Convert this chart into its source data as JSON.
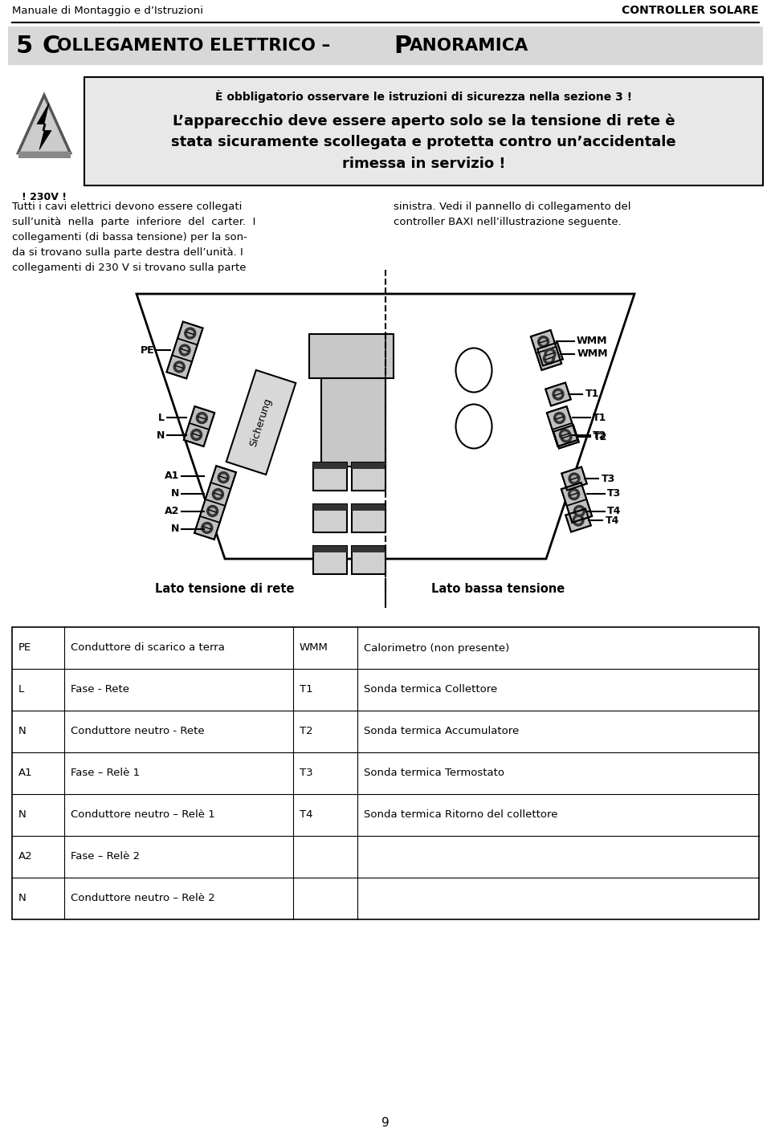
{
  "header_left": "Manuale di Montaggio e d’Istruzioni",
  "header_right": "CONTROLLER SOLARE",
  "warning_line1": "È obbligatorio osservare le istruzioni di sicurezza nella sezione 3 !",
  "warning_line2": "L’apparecchio deve essere aperto solo se la tensione di rete è",
  "warning_line3": "stata sicuramente scollegata e protetta contro un’accidentale",
  "warning_line4": "rimessa in servizio !",
  "voltage_label": "! 230V !",
  "body_text_left": [
    "Tutti i cavi elettrici devono essere collegati",
    "sull’unità  nella  parte  inferiore  del  carter.  I",
    "collegamenti (di bassa tensione) per la son-",
    "da si trovano sulla parte destra dell’unità. I",
    "collegamenti di 230 V si trovano sulla parte"
  ],
  "body_text_right": [
    "sinistra. Vedi il pannello di collegamento del",
    "controller BAXI nell’illustrazione seguente."
  ],
  "label_left": "Lato tensione di rete",
  "label_right": "Lato bassa tensione",
  "connector_labels_left": [
    "PE",
    "L",
    "N",
    "A1",
    "N",
    "A2",
    "N"
  ],
  "connector_labels_right": [
    "WMM",
    "T1",
    "T2",
    "T3",
    "T4"
  ],
  "table_rows": [
    [
      "PE",
      "Conduttore di scarico a terra",
      "WMM",
      "Calorimetro (non presente)"
    ],
    [
      "L",
      "Fase - Rete",
      "T1",
      "Sonda termica Collettore"
    ],
    [
      "N",
      "Conduttore neutro - Rete",
      "T2",
      "Sonda termica Accumulatore"
    ],
    [
      "A1",
      "Fase – Relè 1",
      "T3",
      "Sonda termica Termostato"
    ],
    [
      "N",
      "Conduttore neutro – Relè 1",
      "T4",
      "Sonda termica Ritorno del collettore"
    ],
    [
      "A2",
      "Fase – Relè 2",
      "",
      ""
    ],
    [
      "N",
      "Conduttore neutro – Relè 2",
      "",
      ""
    ]
  ],
  "page_number": "9"
}
